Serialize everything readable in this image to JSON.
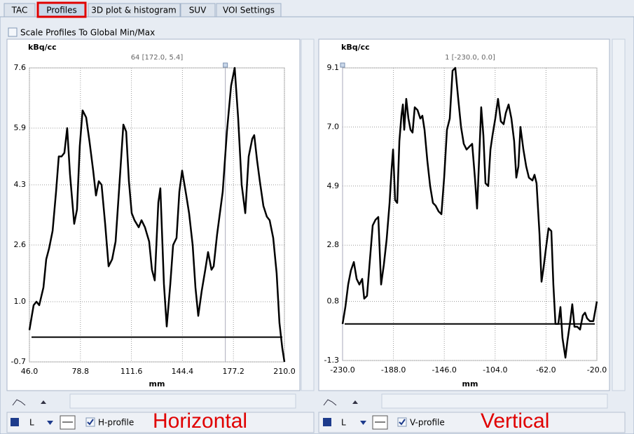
{
  "tabs": [
    "TAC",
    "Profiles",
    "3D plot & histogram",
    "SUV",
    "VOI Settings"
  ],
  "scale_checkbox": "Scale Profiles To Global Min/Max",
  "chart_data": [
    {
      "type": "line",
      "y_label": "kBq/cc",
      "subtitle": "64 [172.0, 5.4]",
      "x_label": "mm",
      "color": "#000000",
      "grid": true,
      "baseline": 0,
      "cursor": 172.0,
      "xlim": [
        46,
        210
      ],
      "xticks": [
        {
          "value": 46,
          "label": "46.0"
        },
        78.8,
        111.6,
        144.4,
        177.2,
        {
          "value": 210,
          "label": "210.0"
        }
      ],
      "ylim": [
        -0.7,
        7.6
      ],
      "yticks": [
        -0.7,
        {
          "value": 1,
          "label": "1.0"
        },
        2.6,
        4.3,
        5.9,
        7.6
      ],
      "x": [
        46.0,
        48.7,
        50.5,
        52.3,
        55.0,
        56.8,
        58.6,
        60.9,
        63.1,
        64.9,
        66.7,
        68.5,
        70.3,
        72.1,
        74.8,
        76.6,
        78.4,
        80.2,
        82.5,
        84.7,
        87.0,
        88.8,
        90.6,
        92.4,
        94.7,
        96.9,
        99.2,
        101.4,
        103.7,
        106.4,
        108.2,
        110.0,
        111.8,
        113.6,
        116.3,
        118.1,
        120.3,
        123.0,
        124.8,
        126.6,
        128.9,
        130.2,
        132.5,
        134.3,
        136.6,
        138.4,
        140.6,
        142.4,
        144.2,
        146.9,
        148.7,
        151.0,
        152.8,
        154.6,
        156.8,
        159.1,
        160.9,
        163.1,
        164.5,
        166.7,
        170.3,
        173.0,
        175.7,
        178.0,
        180.2,
        182.5,
        184.8,
        187.0,
        189.3,
        190.6,
        192.4,
        194.2,
        196.5,
        198.7,
        200.5,
        202.8,
        205.0,
        206.8,
        208.6,
        210.0
      ],
      "values": [
        0.2,
        0.9,
        1.0,
        0.9,
        1.4,
        2.2,
        2.5,
        3.0,
        4.1,
        5.1,
        5.1,
        5.2,
        5.9,
        4.6,
        3.2,
        3.6,
        5.4,
        6.4,
        6.2,
        5.5,
        4.7,
        4.0,
        4.4,
        4.3,
        3.2,
        2.0,
        2.2,
        2.7,
        4.2,
        6.0,
        5.8,
        4.4,
        3.5,
        3.3,
        3.1,
        3.3,
        3.1,
        2.7,
        1.9,
        1.6,
        3.8,
        4.2,
        1.5,
        0.3,
        1.5,
        2.6,
        2.8,
        4.1,
        4.7,
        4.0,
        3.5,
        2.6,
        1.4,
        0.6,
        1.3,
        1.9,
        2.4,
        1.9,
        2.0,
        2.9,
        4.1,
        5.8,
        7.1,
        7.6,
        6.2,
        4.3,
        3.5,
        5.1,
        5.6,
        5.7,
        5.0,
        4.4,
        3.7,
        3.4,
        3.3,
        2.8,
        1.8,
        0.4,
        -0.3,
        -0.7
      ]
    },
    {
      "type": "line",
      "y_label": "kBq/cc",
      "subtitle": "1 [-230.0, 0.0]",
      "x_label": "mm",
      "color": "#000000",
      "grid": true,
      "baseline": 0,
      "cursor": -230.0,
      "xlim": [
        -230,
        -20
      ],
      "xticks": [
        {
          "value": -230,
          "label": "-230.0"
        },
        {
          "value": -188,
          "label": "-188.0"
        },
        {
          "value": -146,
          "label": "-146.0"
        },
        {
          "value": -104,
          "label": "-104.0"
        },
        {
          "value": -62,
          "label": "-62.0"
        },
        {
          "value": -20,
          "label": "-20.0"
        }
      ],
      "ylim": [
        -1.3,
        9.1
      ],
      "yticks": [
        -1.3,
        0.8,
        2.8,
        4.9,
        {
          "value": 7,
          "label": "7.0"
        },
        9.1
      ],
      "x": [
        -230.0,
        -227.7,
        -225.4,
        -223.1,
        -220.7,
        -218.4,
        -216.1,
        -213.8,
        -212.1,
        -209.8,
        -207.4,
        -205.1,
        -202.8,
        -200.5,
        -198.2,
        -195.9,
        -193.6,
        -191.2,
        -189.5,
        -188.3,
        -186.6,
        -184.9,
        -183.1,
        -181.4,
        -180.2,
        -179.1,
        -177.4,
        -175.6,
        -173.9,
        -172.2,
        -170.4,
        -168.1,
        -165.8,
        -164.1,
        -162.3,
        -160.0,
        -157.7,
        -155.4,
        -153.1,
        -150.7,
        -148.4,
        -146.1,
        -143.8,
        -141.5,
        -139.2,
        -136.9,
        -134.5,
        -132.2,
        -129.9,
        -127.6,
        -125.3,
        -123.0,
        -120.7,
        -118.9,
        -117.2,
        -115.5,
        -113.7,
        -112.0,
        -109.7,
        -107.9,
        -106.2,
        -103.9,
        -101.6,
        -99.3,
        -97.0,
        -95.2,
        -92.9,
        -90.6,
        -88.3,
        -86.5,
        -84.8,
        -83.1,
        -80.7,
        -78.4,
        -76.1,
        -73.2,
        -71.5,
        -69.8,
        -67.4,
        -65.7,
        -64.0,
        -61.7,
        -59.9,
        -57.6,
        -55.9,
        -54.2,
        -51.8,
        -50.1,
        -48.4,
        -46.0,
        -44.3,
        -42.0,
        -40.3,
        -38.5,
        -36.2,
        -33.9,
        -31.6,
        -29.8,
        -28.1,
        -25.8,
        -22.9,
        -20.0
      ],
      "values": [
        0.0,
        0.6,
        1.4,
        1.9,
        2.2,
        1.6,
        1.4,
        1.6,
        0.9,
        1.0,
        2.3,
        3.5,
        3.7,
        3.8,
        1.4,
        2.1,
        3.0,
        4.3,
        5.5,
        6.2,
        4.4,
        4.3,
        6.5,
        7.4,
        7.8,
        6.9,
        8.0,
        7.3,
        6.9,
        6.8,
        7.7,
        7.6,
        7.3,
        7.4,
        6.9,
        5.8,
        4.9,
        4.3,
        4.2,
        4.0,
        3.9,
        5.2,
        6.9,
        7.3,
        9.0,
        9.1,
        8.0,
        7.0,
        6.4,
        6.2,
        6.3,
        6.4,
        5.2,
        4.1,
        5.9,
        7.7,
        6.7,
        5.0,
        4.9,
        6.2,
        6.7,
        7.3,
        8.0,
        7.2,
        7.1,
        7.5,
        7.8,
        7.3,
        6.5,
        5.2,
        5.6,
        7.0,
        6.2,
        5.6,
        5.2,
        5.1,
        5.3,
        5.0,
        3.2,
        1.5,
        2.0,
        2.8,
        3.4,
        3.3,
        1.4,
        0.0,
        0.0,
        0.6,
        -0.5,
        -1.2,
        -0.6,
        0.1,
        0.7,
        -0.1,
        -0.1,
        -0.2,
        0.3,
        0.4,
        0.2,
        0.1,
        0.1,
        0.8
      ]
    }
  ],
  "controls": [
    {
      "line": "L",
      "checkbox": "H-profile",
      "annotation": "Horizontal"
    },
    {
      "line": "L",
      "checkbox": "V-profile",
      "annotation": "Vertical"
    }
  ]
}
